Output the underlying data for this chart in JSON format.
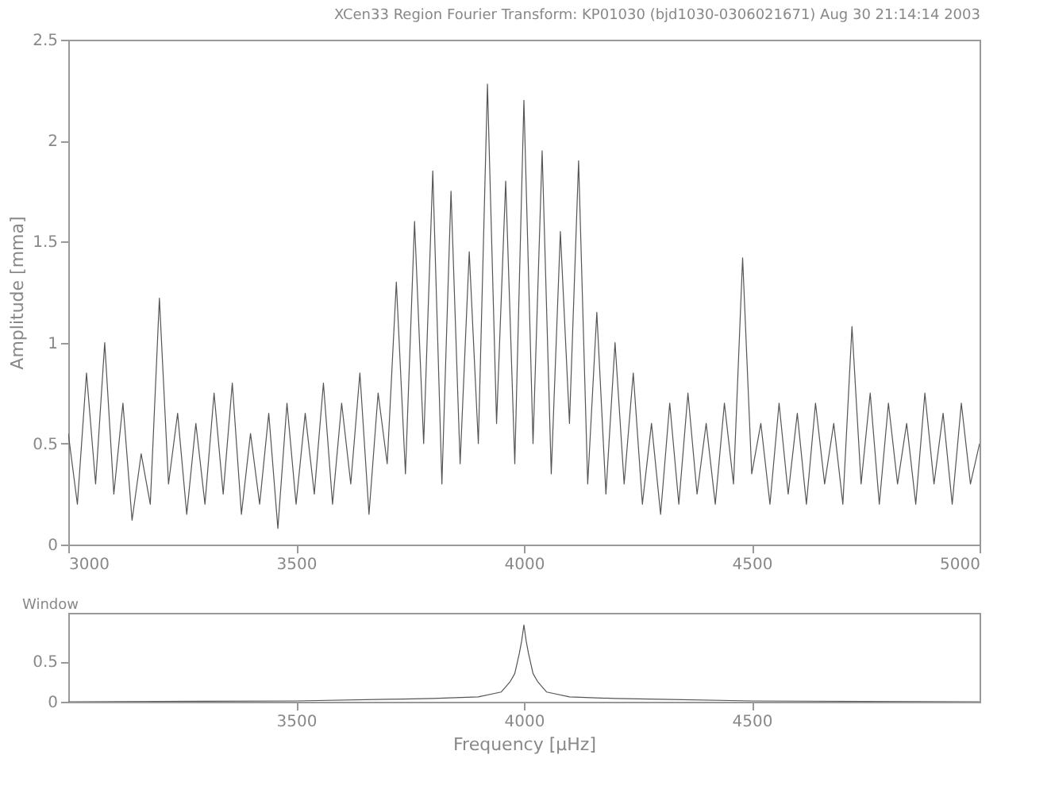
{
  "chart_data": [
    {
      "type": "line",
      "title": "XCen33 Region Fourier Transform: KP01030 (bjd1030-0306021671)    Aug 30 21:14:14 2003",
      "ylabel": "Amplitude [mma]",
      "x": [
        3000,
        3020,
        3040,
        3060,
        3080,
        3100,
        3120,
        3140,
        3160,
        3180,
        3200,
        3220,
        3240,
        3260,
        3280,
        3300,
        3320,
        3340,
        3360,
        3380,
        3400,
        3420,
        3440,
        3460,
        3480,
        3500,
        3520,
        3540,
        3560,
        3580,
        3600,
        3620,
        3640,
        3660,
        3680,
        3700,
        3720,
        3740,
        3760,
        3780,
        3800,
        3820,
        3840,
        3860,
        3880,
        3900,
        3920,
        3940,
        3960,
        3980,
        4000,
        4020,
        4040,
        4060,
        4080,
        4100,
        4120,
        4140,
        4160,
        4180,
        4200,
        4220,
        4240,
        4260,
        4280,
        4300,
        4320,
        4340,
        4360,
        4380,
        4400,
        4420,
        4440,
        4460,
        4480,
        4500,
        4520,
        4540,
        4560,
        4580,
        4600,
        4620,
        4640,
        4660,
        4680,
        4700,
        4720,
        4740,
        4760,
        4780,
        4800,
        4820,
        4840,
        4860,
        4880,
        4900,
        4920,
        4940,
        4960,
        4980,
        5000
      ],
      "series": [
        {
          "color": "#555555",
          "values": [
            0.55,
            0.2,
            0.85,
            0.3,
            1.0,
            0.25,
            0.7,
            0.12,
            0.45,
            0.2,
            1.22,
            0.3,
            0.65,
            0.15,
            0.6,
            0.2,
            0.75,
            0.25,
            0.8,
            0.15,
            0.55,
            0.2,
            0.65,
            0.08,
            0.7,
            0.2,
            0.65,
            0.25,
            0.8,
            0.2,
            0.7,
            0.3,
            0.85,
            0.15,
            0.75,
            0.4,
            1.3,
            0.35,
            1.6,
            0.5,
            1.85,
            0.3,
            1.75,
            0.4,
            1.45,
            0.5,
            2.28,
            0.6,
            1.8,
            0.4,
            2.2,
            0.5,
            1.95,
            0.35,
            1.55,
            0.6,
            1.9,
            0.3,
            1.15,
            0.25,
            1.0,
            0.3,
            0.85,
            0.2,
            0.6,
            0.15,
            0.7,
            0.2,
            0.75,
            0.25,
            0.6,
            0.2,
            0.7,
            0.3,
            1.42,
            0.35,
            0.6,
            0.2,
            0.7,
            0.25,
            0.65,
            0.2,
            0.7,
            0.3,
            0.6,
            0.2,
            1.08,
            0.3,
            0.75,
            0.2,
            0.7,
            0.3,
            0.6,
            0.2,
            0.75,
            0.3,
            0.65,
            0.2,
            0.7,
            0.3,
            0.5
          ]
        }
      ],
      "xlim": [
        3000,
        5000
      ],
      "xticks": [
        3000,
        3500,
        4000,
        4500,
        5000
      ],
      "ylim": [
        0,
        2.5
      ],
      "yticks": [
        0,
        0.5,
        1,
        1.5,
        2,
        2.5
      ],
      "grid": false
    },
    {
      "type": "line",
      "xlabel": "Frequency [μHz]",
      "ylabel": "Window",
      "x": [
        3000,
        3500,
        3700,
        3800,
        3900,
        3950,
        3970,
        3980,
        3990,
        3995,
        4000,
        4005,
        4010,
        4020,
        4030,
        4050,
        4100,
        4200,
        4300,
        4500,
        5000
      ],
      "series": [
        {
          "color": "#555555",
          "values": [
            0,
            0.01,
            0.03,
            0.04,
            0.06,
            0.12,
            0.25,
            0.35,
            0.6,
            0.75,
            0.95,
            0.75,
            0.6,
            0.35,
            0.25,
            0.12,
            0.06,
            0.04,
            0.03,
            0.01,
            0
          ]
        }
      ],
      "xlim": [
        3000,
        5000
      ],
      "xticks": [
        3500,
        4000,
        4500
      ],
      "ylim": [
        0,
        1.1
      ],
      "yticks": [
        0,
        0.5
      ],
      "grid": false
    }
  ]
}
